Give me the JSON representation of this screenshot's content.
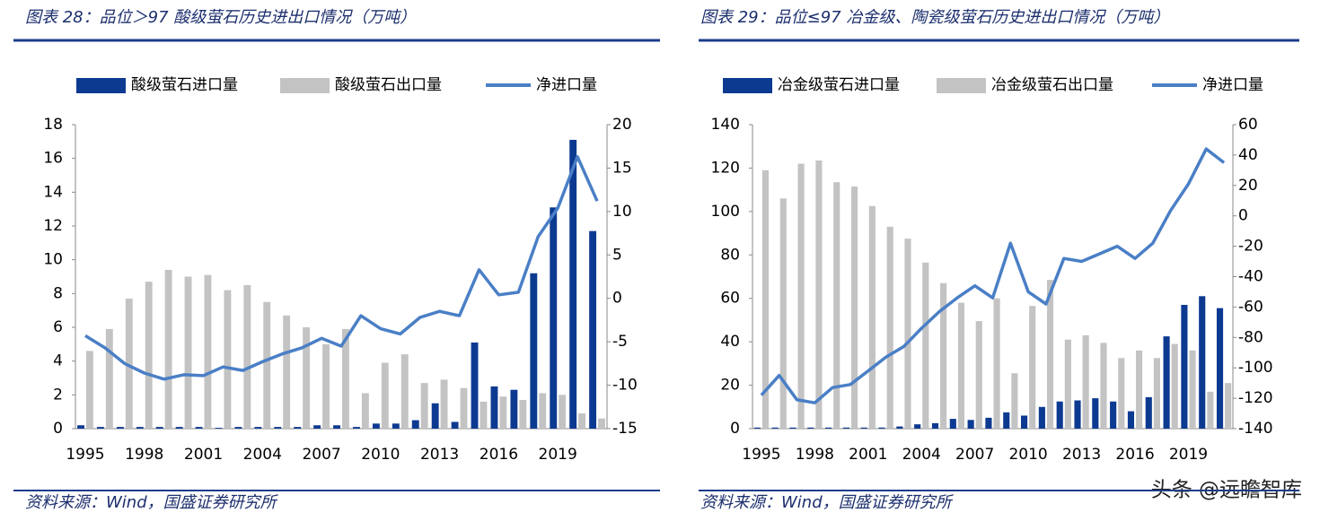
{
  "chart_data": [
    {
      "type": "bar",
      "title": "图表 28：品位＞97 酸级萤石历史进出口情况（万吨）",
      "source": "资料来源：Wind，国盛证券研究所",
      "categories": [
        "1995",
        null,
        null,
        "1998",
        null,
        null,
        "2001",
        null,
        null,
        "2004",
        null,
        null,
        "2007",
        null,
        null,
        "2010",
        null,
        null,
        "2013",
        null,
        null,
        "2016",
        null,
        null,
        "2019",
        null,
        null
      ],
      "series": [
        {
          "name": "酸级萤石进口量",
          "type": "bar",
          "color": "#0d3a91",
          "values": [
            0.2,
            0.1,
            0.1,
            0.1,
            0.1,
            0.1,
            0.1,
            0.05,
            0.1,
            0.1,
            0.1,
            0.1,
            0.2,
            0.2,
            0.1,
            0.3,
            0.3,
            0.5,
            1.5,
            0.4,
            5.1,
            2.5,
            2.3,
            9.2,
            13.1,
            17.1,
            11.7
          ]
        },
        {
          "name": "酸级萤石出口量",
          "type": "bar",
          "color": "#c3c3c3",
          "values": [
            4.6,
            5.9,
            7.7,
            8.7,
            9.4,
            9.0,
            9.1,
            8.2,
            8.5,
            7.5,
            6.7,
            6.0,
            5.0,
            5.9,
            2.1,
            3.9,
            4.4,
            2.7,
            2.9,
            2.4,
            1.6,
            1.9,
            1.7,
            2.1,
            2.0,
            0.9,
            0.6
          ]
        },
        {
          "name": "净进口量",
          "type": "line",
          "axis": "y2",
          "color": "#4a7fc6",
          "values": [
            -4.3,
            -5.7,
            -7.5,
            -8.6,
            -9.3,
            -8.8,
            -8.9,
            -7.9,
            -8.3,
            -7.3,
            -6.4,
            -5.7,
            -4.6,
            -5.5,
            -2.0,
            -3.5,
            -4.1,
            -2.2,
            -1.5,
            -2.0,
            3.3,
            0.4,
            0.7,
            7.1,
            10.4,
            16.3,
            11.2
          ]
        }
      ],
      "ylim": [
        0,
        18
      ],
      "yticks": [
        0,
        2,
        4,
        6,
        8,
        10,
        12,
        14,
        16,
        18
      ],
      "y2lim": [
        -15,
        20
      ],
      "y2ticks": [
        -15,
        -10,
        -5,
        0,
        5,
        10,
        15,
        20
      ],
      "legend": "top",
      "grid": false
    },
    {
      "type": "bar",
      "title": "图表 29：品位≤97 冶金级、陶瓷级萤石历史进出口情况（万吨）",
      "source": "资料来源：Wind，国盛证券研究所",
      "categories": [
        "1995",
        null,
        null,
        "1998",
        null,
        null,
        "2001",
        null,
        null,
        "2004",
        null,
        null,
        "2007",
        null,
        null,
        "2010",
        null,
        null,
        "2013",
        null,
        null,
        "2016",
        null,
        null,
        "2019",
        null,
        null
      ],
      "series": [
        {
          "name": "冶金级萤石进口量",
          "type": "bar",
          "color": "#0d3a91",
          "values": [
            0.5,
            0.5,
            0.5,
            0.5,
            0.5,
            0.5,
            0.5,
            0.5,
            1,
            2,
            2.5,
            4.5,
            4,
            5,
            7.5,
            6,
            10,
            12.5,
            13,
            14,
            12.5,
            8,
            14.5,
            42.5,
            57,
            61,
            55.5
          ]
        },
        {
          "name": "冶金级萤石出口量",
          "type": "bar",
          "color": "#c3c3c3",
          "values": [
            119,
            106,
            122,
            123.5,
            113.5,
            111.5,
            102.5,
            93,
            87.5,
            76.5,
            67,
            58,
            49.5,
            60,
            25.5,
            56.5,
            68.5,
            41,
            43,
            39.5,
            32.5,
            36,
            32.5,
            39,
            36,
            17,
            21
          ]
        },
        {
          "name": "净进口量",
          "type": "line",
          "axis": "y2",
          "color": "#4a7fc6",
          "values": [
            -118,
            -105,
            -121,
            -123,
            -113,
            -111,
            -102,
            -93,
            -86,
            -74,
            -63,
            -54,
            -46,
            -54,
            -18,
            -50,
            -58,
            -28,
            -30,
            -25,
            -20,
            -28,
            -18,
            3.5,
            21,
            44,
            35
          ]
        }
      ],
      "ylim": [
        0,
        140
      ],
      "yticks": [
        0,
        20,
        40,
        60,
        80,
        100,
        120,
        140
      ],
      "y2lim": [
        -140,
        60
      ],
      "y2ticks": [
        -140,
        -120,
        -100,
        -80,
        -60,
        -40,
        -20,
        0,
        20,
        40,
        60
      ],
      "legend": "top",
      "grid": false
    }
  ],
  "watermark": "头条 @远瞻智库"
}
